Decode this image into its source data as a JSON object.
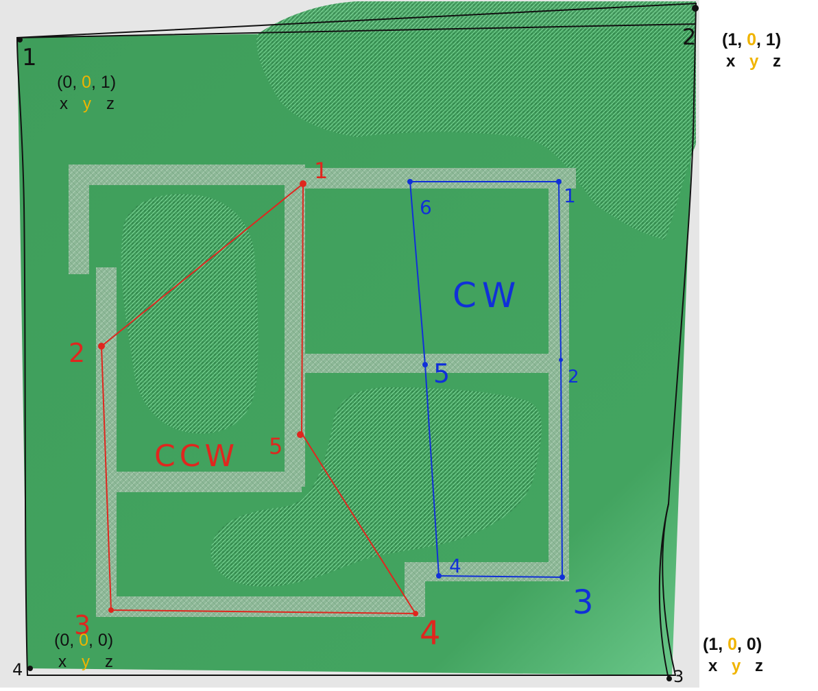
{
  "colors": {
    "terrain": "#3fa560",
    "terrain_light": "#5fc47e",
    "path_stone": "#8fb59a",
    "red_path": "#e0261e",
    "blue_path": "#1030d8",
    "y_highlight": "#f0b400"
  },
  "corners": {
    "top_left": {
      "text_pre": "(0, ",
      "y": "0",
      "text_post": ", 1)",
      "axis_x": "x",
      "axis_y": "y",
      "axis_z": "z",
      "marker": "1"
    },
    "top_right": {
      "text_pre": "(1, ",
      "y": "0",
      "text_post": ", 1)",
      "axis_x": "x",
      "axis_y": "y",
      "axis_z": "z",
      "marker": "2"
    },
    "bottom_left": {
      "text_pre": "(0, ",
      "y": "0",
      "text_post": ", 0)",
      "axis_x": "x",
      "axis_y": "y",
      "axis_z": "z",
      "marker": "4"
    },
    "bottom_right": {
      "text_pre": "(1, ",
      "y": "0",
      "text_post": ", 0)",
      "axis_x": "x",
      "axis_y": "y",
      "axis_z": "z",
      "marker": "3"
    }
  },
  "red_loop": {
    "label": "CCW",
    "points": [
      "1",
      "2",
      "3",
      "4",
      "5"
    ]
  },
  "blue_loop": {
    "label": "CW",
    "points": [
      "1",
      "2",
      "3",
      "4",
      "5",
      "6"
    ]
  }
}
